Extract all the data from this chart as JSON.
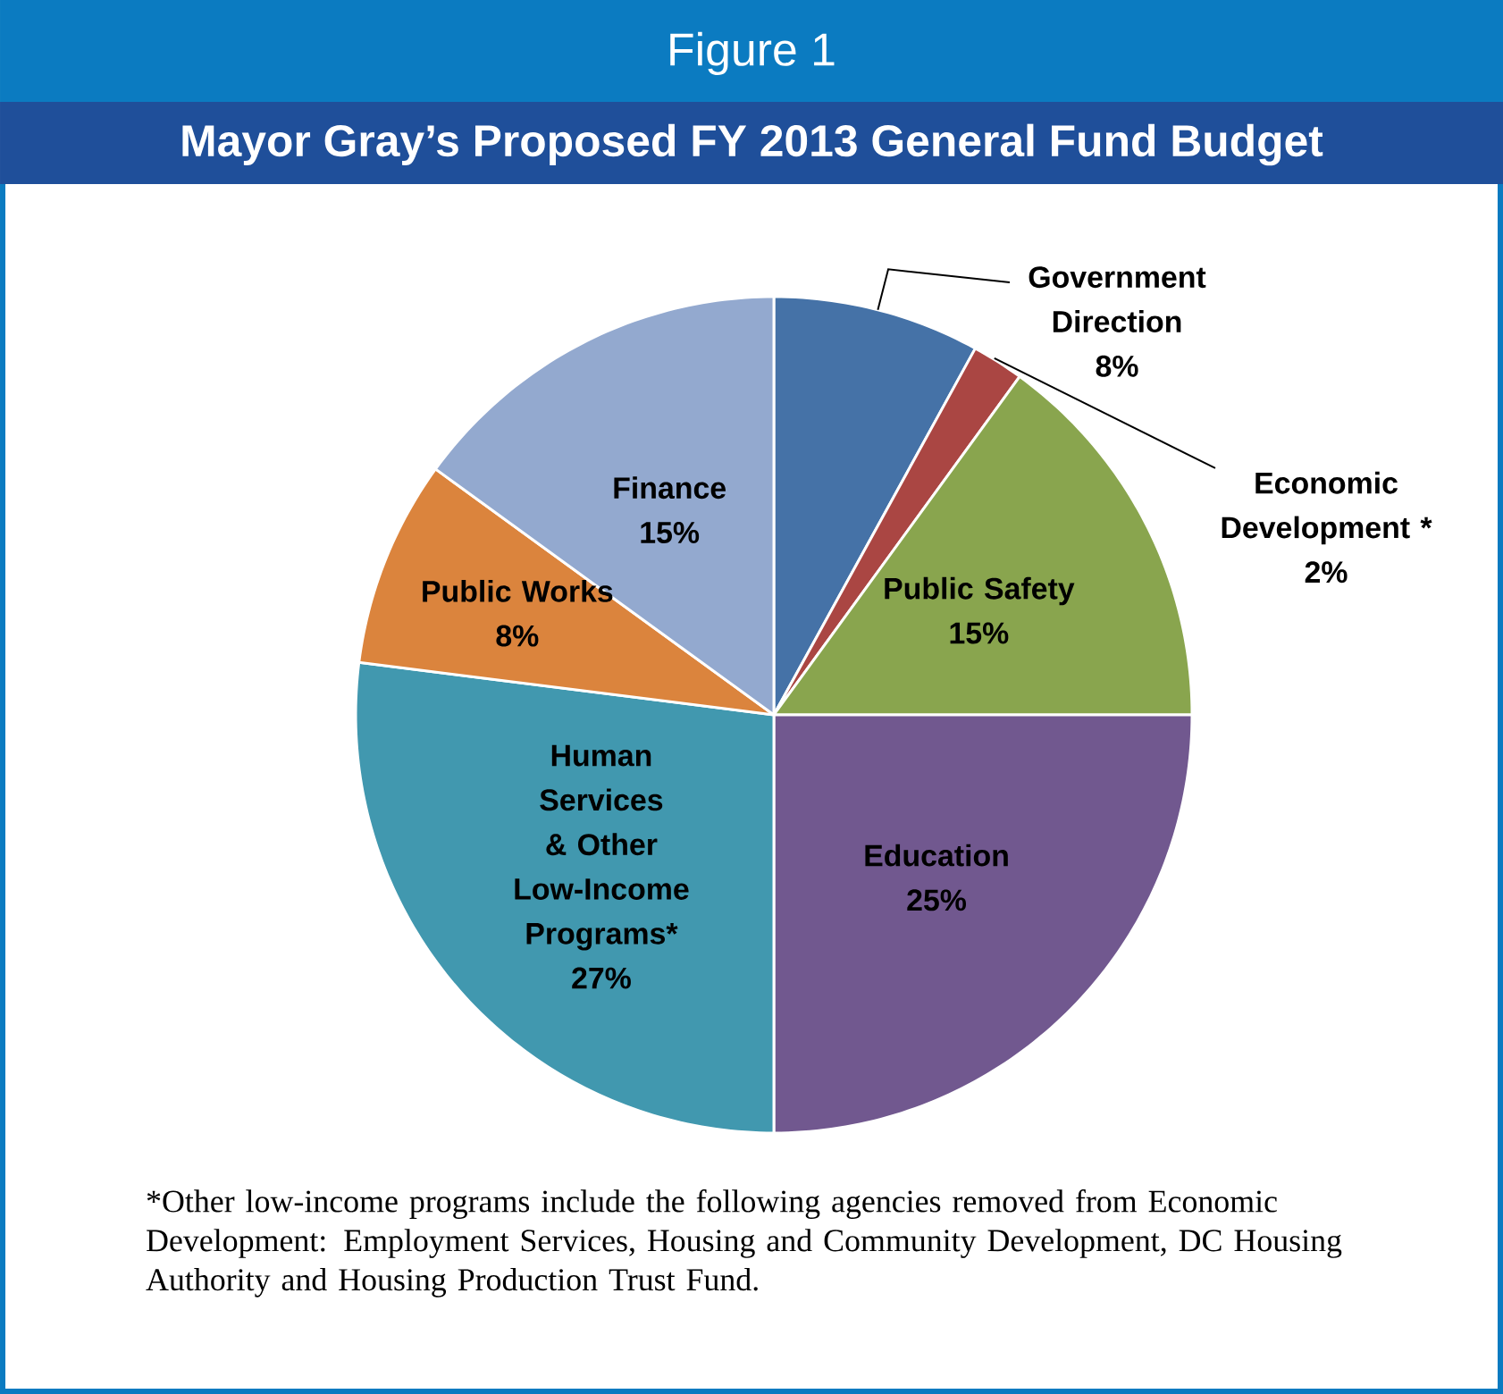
{
  "chart_data": {
    "type": "pie",
    "title": "Figure 1",
    "subtitle": "Mayor Gray’s Proposed FY 2013 General Fund Budget",
    "categories": [
      "Government Direction",
      "Economic Development *",
      "Public Safety",
      "Education",
      "Human Services & Other Low-Income Programs*",
      "Public Works",
      "Finance"
    ],
    "values": [
      8,
      2,
      15,
      25,
      27,
      8,
      15
    ],
    "value_labels": [
      "8%",
      "2%",
      "15%",
      "25%",
      "27%",
      "8%",
      "15%"
    ],
    "colors": [
      "#4572a7",
      "#aa4643",
      "#89a54e",
      "#71588f",
      "#4198af",
      "#db843d",
      "#93a9cf"
    ],
    "annotations": [
      "*Other low-income programs include the following agencies removed from Economic Development: Employment Services, Housing and Community Development, DC Housing Authority and Housing Production Trust Fund."
    ]
  }
}
